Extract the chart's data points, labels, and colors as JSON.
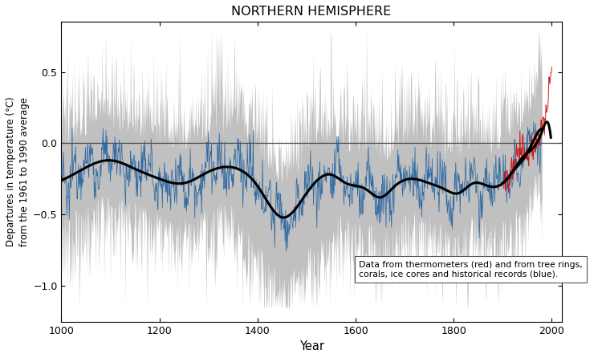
{
  "title": "NORTHERN HEMISPHERE",
  "xlabel": "Year",
  "ylabel": "Departures in temperature (°C)\nfrom the 1961 to 1990 average",
  "xlim": [
    1000,
    2020
  ],
  "ylim": [
    -1.25,
    0.85
  ],
  "yticks": [
    -1.0,
    -0.5,
    0.0,
    0.5
  ],
  "xticks": [
    1000,
    1200,
    1400,
    1600,
    1800,
    2000
  ],
  "legend_text": "Data from thermometers (red) and from tree rings,\ncorals, ice cores and historical records (blue).",
  "zero_line_y": 0.0,
  "gray_color": "#c0c0c0",
  "blue_color": "#2060a0",
  "red_color": "#cc1111",
  "black_color": "#000000",
  "background_color": "#ffffff",
  "figsize": [
    7.5,
    4.46
  ],
  "dpi": 100
}
